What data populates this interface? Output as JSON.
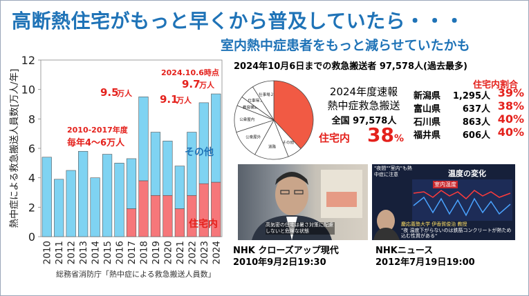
{
  "title": "高断熱住宅がもっと早くから普及していたら・・・",
  "subtitle": "室内熱中症患者をもっと減らせていたかも",
  "chart_data": {
    "type": "bar",
    "stacked": true,
    "categories": [
      "2010",
      "2011",
      "2012",
      "2013",
      "2014",
      "2015",
      "2016",
      "2017",
      "2018",
      "2019",
      "2020",
      "2021",
      "2022",
      "2023",
      "2024"
    ],
    "series": [
      {
        "name": "住宅内",
        "color": "#f6777a",
        "values": [
          0,
          0,
          0,
          0,
          0,
          0,
          0,
          1.9,
          3.8,
          2.8,
          2.8,
          1.9,
          2.8,
          3.6,
          3.7
        ]
      },
      {
        "name": "その他",
        "color": "#7fd3f2",
        "values": [
          5.4,
          3.9,
          4.5,
          5.8,
          4.0,
          5.6,
          5.0,
          3.4,
          5.7,
          4.3,
          3.7,
          2.9,
          4.3,
          5.5,
          6.0
        ]
      }
    ],
    "ylabel": "熱中症による救急搬送人員数[万人/年]",
    "ylim": [
      0,
      12
    ],
    "yticks": [
      "0",
      "2",
      "4",
      "6",
      "8",
      "10",
      "12"
    ],
    "grid": false,
    "annotations": {
      "range_label_1": "2010-2017年度",
      "range_label_2": "毎年4～6万人",
      "peak_2018_num": "9.5",
      "peak_2018_unit": "万人",
      "peak_2023_num": "9.1",
      "peak_2023_unit": "万人",
      "peak_2024_date": "2024.10.6時点",
      "peak_2024_num": "9.7",
      "peak_2024_unit": "万人",
      "label_other": "その他",
      "label_home": "住宅内"
    }
  },
  "source_note": "総務省消防庁「熱中症による救急搬送人員数」",
  "stats": {
    "header": "2024年10月6日までの救急搬送者 97,578人(過去最多)",
    "sokuho_line1": "2024年度速報",
    "sokuho_line2": "熱中症救急搬送",
    "total": "全国 97,578人",
    "home_label": "住宅内",
    "home_pct": "38",
    "pct_sign": "%",
    "pie_labels": [
      "その他",
      "道路",
      "公衆屋外",
      "公衆屋内",
      "教育機関",
      "仕事場１",
      "仕事場２"
    ],
    "pie_values": [
      38,
      6,
      14,
      12,
      11,
      4,
      6,
      9
    ],
    "pie_home_color": "#f15a44"
  },
  "prefectures": {
    "header": "住宅内割合",
    "rows": [
      {
        "name": "新潟県",
        "count": "1,295人",
        "pct": "39%"
      },
      {
        "name": "富山県",
        "count": "637人",
        "pct": "38%"
      },
      {
        "name": "石川県",
        "count": "863人",
        "pct": "40%"
      },
      {
        "name": "福井県",
        "count": "606人",
        "pct": "40%"
      }
    ]
  },
  "media": {
    "nhk1_caption_1": "NHK クローズアップ現代",
    "nhk1_caption_2": "2010年9月2日19:30",
    "nhk1_overlay": "高気密の住宅は暑さ対策に配慮しないと危険な状態",
    "nhk2_caption_1": "NHKニュース",
    "nhk2_caption_2": "2012年7月19日19:00",
    "nhk2_overlay_top": "\"夜間\"\"室内\"も熱中症に注意",
    "nhk2_overlay_title": "温度の変化",
    "nhk2_legend": "室内温度",
    "nhk2_overlay_name": "慶応義塾大学 伊香賀俊治 教授",
    "nhk2_overlay_quote": "\"夜 温度下がらないのは鉄筋コンクリートが熱ため込む性質がある\""
  }
}
